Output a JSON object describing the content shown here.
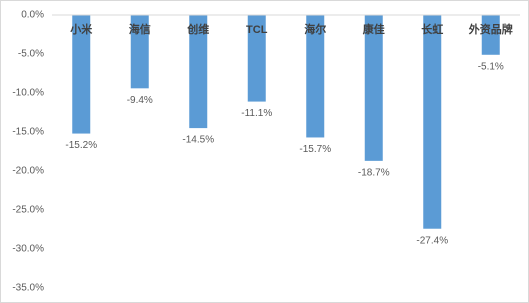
{
  "chart_data": {
    "type": "bar",
    "categories": [
      "小米",
      "海信",
      "创维",
      "TCL",
      "海尔",
      "康佳",
      "长虹",
      "外资品牌"
    ],
    "values": [
      -15.2,
      -9.4,
      -14.5,
      -11.1,
      -15.7,
      -18.7,
      -27.4,
      -5.1
    ],
    "value_labels": [
      "-15.2%",
      "-9.4%",
      "-14.5%",
      "-11.1%",
      "-15.7%",
      "-18.7%",
      "-27.4%",
      "-5.1%"
    ],
    "color": "#5b9bd5",
    "ylim": [
      0,
      -35
    ],
    "yticks": [
      {
        "value": 0,
        "label": "0.0%"
      },
      {
        "value": -5,
        "label": "-5.0%"
      },
      {
        "value": -10,
        "label": "-10.0%"
      },
      {
        "value": -15,
        "label": "-15.0%"
      },
      {
        "value": -20,
        "label": "-20.0%"
      },
      {
        "value": -25,
        "label": "-25.0%"
      },
      {
        "value": -30,
        "label": "-30.0%"
      },
      {
        "value": -35,
        "label": "-35.0%"
      }
    ],
    "grid": false
  }
}
